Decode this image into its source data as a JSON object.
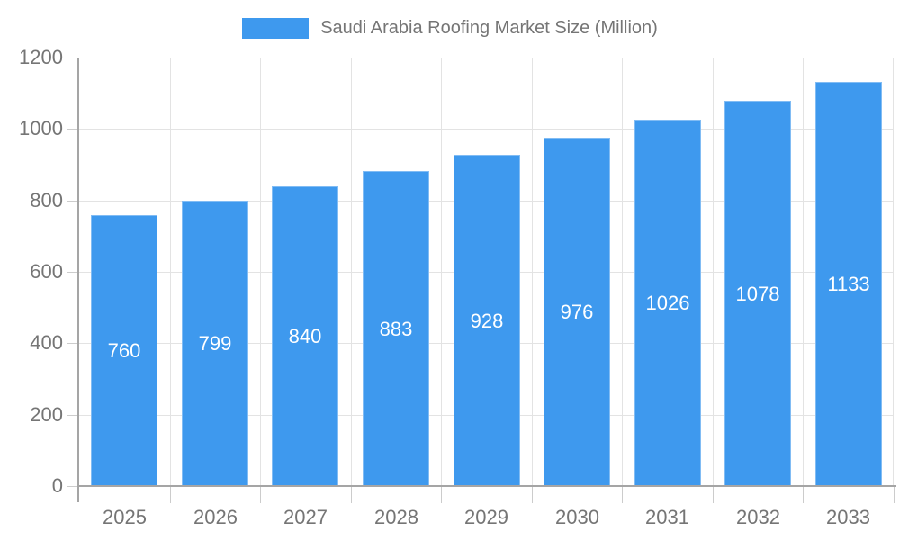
{
  "chart_data": {
    "type": "bar",
    "title": "Saudi Arabia Roofing Market Size (Million)",
    "categories": [
      "2025",
      "2026",
      "2027",
      "2028",
      "2029",
      "2030",
      "2031",
      "2032",
      "2033"
    ],
    "values": [
      760,
      799,
      840,
      883,
      928,
      976,
      1026,
      1078,
      1133
    ],
    "xlabel": "",
    "ylabel": "",
    "ylim": [
      0,
      1200
    ],
    "y_ticks": [
      0,
      200,
      400,
      600,
      800,
      1000,
      1200
    ],
    "grid": true,
    "legend_position": "top-center",
    "bar_value_labels_position": "inside-center",
    "colors": {
      "bar": "#3E99EE",
      "bar_label": "#FFFFFF",
      "axis_line": "#A5A5A5",
      "tick": "#CCCCCC",
      "gridline": "#E3E3E3",
      "text": "#757575",
      "background": "#FFFFFF"
    }
  }
}
